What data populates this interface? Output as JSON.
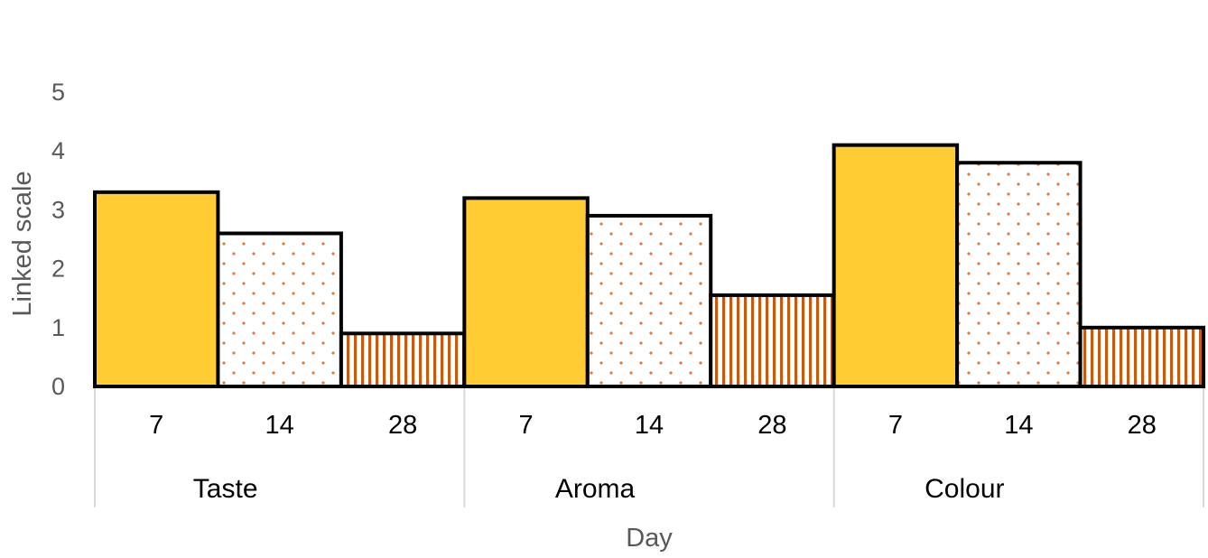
{
  "chart_data": {
    "type": "bar",
    "title": "",
    "xlabel": "Day",
    "ylabel": "Linked scale",
    "ylim": [
      0,
      5
    ],
    "yticks": [
      "0",
      "1",
      "2",
      "3",
      "4",
      "5"
    ],
    "grid": false,
    "legend": "none",
    "groups": [
      {
        "name": "Taste",
        "days": [
          "7",
          "14",
          "28"
        ],
        "values": [
          3.3,
          2.6,
          0.9
        ]
      },
      {
        "name": "Aroma",
        "days": [
          "7",
          "14",
          "28"
        ],
        "values": [
          3.2,
          2.9,
          1.55
        ]
      },
      {
        "name": "Colour",
        "days": [
          "7",
          "14",
          "28"
        ],
        "values": [
          4.1,
          3.8,
          1.0
        ]
      }
    ],
    "bar_styles": [
      {
        "day": "7",
        "fill": "solid",
        "color": "#FFCC33"
      },
      {
        "day": "14",
        "fill": "dotted",
        "color": "#E07B39"
      },
      {
        "day": "28",
        "fill": "vertical-lines",
        "color": "#C55A11"
      }
    ]
  }
}
